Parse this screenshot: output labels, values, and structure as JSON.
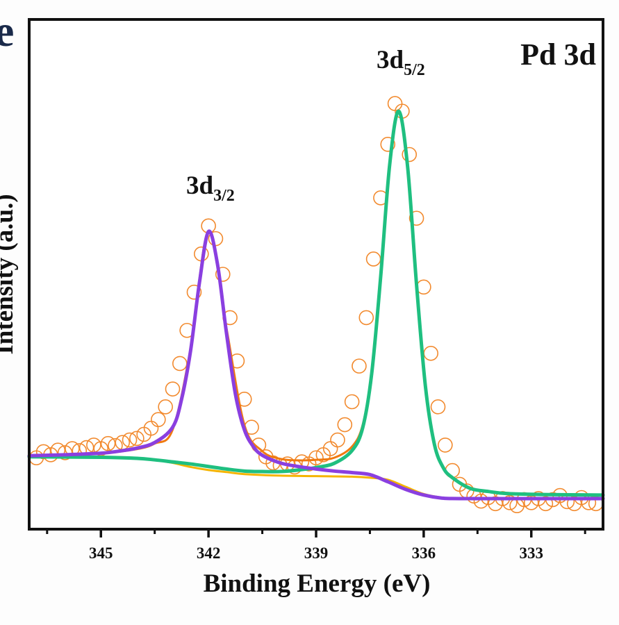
{
  "panel_label": "e",
  "chart_data": {
    "type": "line",
    "title": "Pd 3d",
    "xlabel": "Binding Energy (eV)",
    "ylabel": "Intensity (a.u.)",
    "xlim": [
      347,
      331
    ],
    "x_reversed": true,
    "ylim": [
      0,
      100
    ],
    "y_ticks_shown": false,
    "grid": false,
    "x_ticks": [
      345,
      342,
      339,
      336,
      333
    ],
    "x_tick_labels": [
      "345",
      "342",
      "339",
      "336",
      "333"
    ],
    "x_minor_ticks": [
      346.5,
      343.5,
      340.5,
      337.5,
      334.5,
      331.5
    ],
    "annotations": [
      {
        "main": "3d",
        "sub": "3/2",
        "x": 342.0
      },
      {
        "main": "3d",
        "sub": "5/2",
        "x": 336.7
      }
    ],
    "colors": {
      "data": "#f28a2e",
      "envelope": "#f07a10",
      "background": "#f5b400",
      "peak_3d52": "#1fbf80",
      "peak_3d32": "#8a3fe0",
      "frame": "#111111"
    },
    "scatter": {
      "marker": "open-circle",
      "x": [
        346.8,
        346.6,
        346.4,
        346.2,
        346.0,
        345.8,
        345.6,
        345.4,
        345.2,
        345.0,
        344.8,
        344.6,
        344.4,
        344.2,
        344.0,
        343.8,
        343.6,
        343.4,
        343.2,
        343.0,
        342.8,
        342.6,
        342.4,
        342.2,
        342.0,
        341.8,
        341.6,
        341.4,
        341.2,
        341.0,
        340.8,
        340.6,
        340.4,
        340.2,
        340.0,
        339.8,
        339.6,
        339.4,
        339.2,
        339.0,
        338.8,
        338.6,
        338.4,
        338.2,
        338.0,
        337.8,
        337.6,
        337.4,
        337.2,
        337.0,
        336.8,
        336.6,
        336.4,
        336.2,
        336.0,
        335.8,
        335.6,
        335.4,
        335.2,
        335.0,
        334.8,
        334.6,
        334.4,
        334.2,
        334.0,
        333.8,
        333.6,
        333.4,
        333.2,
        333.0,
        332.8,
        332.6,
        332.4,
        332.2,
        332.0,
        331.8,
        331.6,
        331.4,
        331.2
      ],
      "y": [
        14.0,
        15.2,
        14.6,
        15.5,
        15.0,
        15.8,
        15.4,
        16.0,
        16.5,
        15.8,
        16.8,
        16.4,
        17.0,
        17.5,
        17.8,
        18.6,
        19.8,
        21.5,
        24.0,
        27.5,
        32.5,
        39.0,
        46.5,
        54.0,
        59.5,
        57.0,
        50.0,
        41.5,
        33.0,
        25.5,
        20.0,
        16.5,
        14.2,
        13.0,
        12.5,
        12.8,
        12.2,
        13.2,
        12.8,
        14.0,
        14.6,
        15.8,
        17.5,
        20.5,
        25.0,
        32.0,
        41.5,
        53.0,
        65.0,
        75.5,
        83.5,
        82.0,
        73.5,
        61.0,
        47.5,
        34.5,
        24.0,
        16.5,
        11.5,
        8.8,
        7.5,
        6.5,
        5.5,
        6.2,
        5.0,
        6.0,
        5.2,
        4.6,
        5.8,
        5.2,
        6.0,
        5.0,
        5.8,
        6.6,
        5.4,
        5.0,
        6.2,
        5.2,
        5.0
      ]
    },
    "series": [
      {
        "key": "envelope",
        "x": [
          347,
          345,
          344,
          343.5,
          343,
          342.5,
          342,
          341.5,
          341,
          340.5,
          340,
          339.5,
          339,
          338.5,
          338,
          337.7,
          337.45,
          337.2,
          336.95,
          336.7,
          336.45,
          336.2,
          335.95,
          335.7,
          335.45,
          335.2,
          334.7,
          334.2,
          333,
          331
        ],
        "y": [
          14.5,
          14.9,
          15.7,
          16.8,
          19.5,
          35.5,
          58.5,
          39.5,
          20.5,
          15.3,
          13.8,
          13.5,
          13.6,
          14.0,
          16.2,
          20.5,
          31,
          50,
          71.5,
          82,
          71.2,
          48,
          27.9,
          16.6,
          12,
          10.1,
          8,
          7.4,
          6.9,
          6.8
        ]
      },
      {
        "key": "background",
        "x": [
          347,
          345,
          344,
          343.5,
          343,
          342.5,
          342,
          341.5,
          341,
          340,
          339,
          338,
          337.5,
          337,
          336.5,
          336,
          335.5,
          335,
          333,
          331
        ],
        "y": [
          14.3,
          14.2,
          14.0,
          13.6,
          13.0,
          12.2,
          11.6,
          11.2,
          10.8,
          10.5,
          10.4,
          10.3,
          10.1,
          9.7,
          8.3,
          6.9,
          6.2,
          6.0,
          5.9,
          5.9
        ]
      },
      {
        "key": "peak_3d52",
        "x": [
          347,
          345,
          344,
          343.5,
          343,
          342.5,
          342,
          341.5,
          341,
          340.5,
          340,
          339.5,
          339,
          338.5,
          338,
          337.7,
          337.45,
          337.2,
          336.95,
          336.7,
          336.45,
          336.2,
          335.95,
          335.7,
          335.45,
          335.2,
          334.7,
          334.2,
          333.7,
          332.7,
          331
        ],
        "y": [
          14.2,
          14.1,
          13.9,
          13.6,
          13.2,
          12.8,
          12.3,
          11.8,
          11.4,
          11.3,
          11.3,
          11.6,
          12.1,
          12.9,
          15.4,
          19.9,
          30.5,
          49.5,
          71.4,
          82.0,
          71.2,
          48.0,
          27.9,
          16.6,
          12.0,
          10.1,
          8.0,
          7.4,
          7.0,
          6.8,
          6.7
        ]
      },
      {
        "key": "peak_3d32",
        "x": [
          347,
          346,
          345,
          344.5,
          344,
          343.5,
          343,
          342.75,
          342.5,
          342.25,
          342.0,
          341.75,
          341.5,
          341.25,
          341.0,
          340.75,
          340.5,
          340,
          339.5,
          339,
          338.5,
          338,
          337.5,
          337,
          336.5,
          336,
          335.5,
          335,
          333,
          331
        ],
        "y": [
          14.4,
          14.6,
          14.9,
          15.3,
          15.9,
          17.0,
          20.0,
          25.5,
          35,
          48.5,
          58.4,
          52,
          38.5,
          26.5,
          19.5,
          16.2,
          14.5,
          13.0,
          12.3,
          11.8,
          11.4,
          11.1,
          10.7,
          9.3,
          7.8,
          6.7,
          6.1,
          6.0,
          6.0,
          6.0
        ]
      }
    ]
  }
}
